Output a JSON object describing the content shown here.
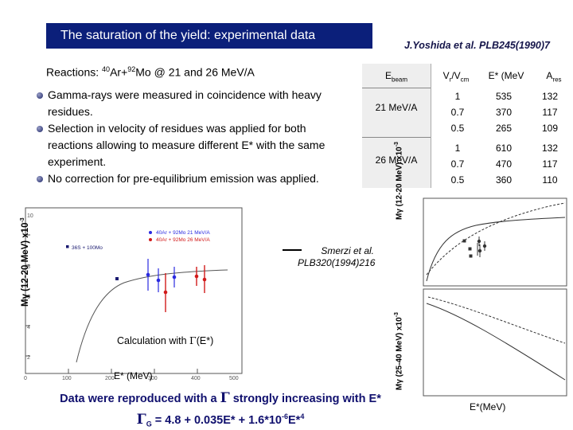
{
  "slide": {
    "title": "The saturation of the yield: experimental data",
    "reference": "J.Yoshida et al. PLB245(1990)7",
    "reactions": {
      "prefix": "Reactions: ",
      "ar_mass": "40",
      "ar": "Ar+",
      "mo_mass": "92",
      "mo": "Mo @ 21 and 26 MeV/A"
    },
    "bullets": [
      "Gamma-rays were measured in coincidence with heavy residues.",
      "Selection in velocity of residues was applied for both reactions allowing to measure different E* with the same experiment.",
      "No correction for pre-equilibrium emission was applied."
    ],
    "table": {
      "headers": {
        "ebeam": "E",
        "ebeam_sub": "beam",
        "vr": "V",
        "vr_sub": "r",
        "vr_mid": "/V",
        "vr_sub2": "cm",
        "estar": "E* (MeV",
        "ares": "A",
        "ares_sub": "res"
      },
      "rows": [
        {
          "beam": "21 MeV/A",
          "vr": [
            "1",
            "0.7",
            "0.5"
          ],
          "estar": [
            "535",
            "370",
            "265"
          ],
          "ares": [
            "132",
            "117",
            "109"
          ]
        },
        {
          "beam": "26 MeV/A",
          "vr": [
            "1",
            "0.7",
            "0.5"
          ],
          "estar": [
            "610",
            "470",
            "360"
          ],
          "ares": [
            "132",
            "117",
            "110"
          ]
        }
      ]
    },
    "left_plot": {
      "ylabel": "Mγ (12-20 MeV) x10",
      "ylabel_exp": "-3",
      "xlabel": "E* (MeV)",
      "legend": [
        "40Ar + 92Mo 21 MeV/A",
        "40Ar + 92Mo 26 MeV/A",
        "36S + 100Mo"
      ],
      "calc_prefix": "Calculation with ",
      "calc_gamma": "Γ",
      "calc_suffix": "(E*)",
      "smerzi_line1": "Smerzi et al.",
      "smerzi_line2": "PLB320(1994)216",
      "yticks": [
        "10",
        "8",
        "6",
        "4",
        "2"
      ],
      "xticks": [
        "0",
        "100",
        "200",
        "300",
        "400",
        "500"
      ]
    },
    "right_plot": {
      "ylabel_top": "Mγ (12-20 MeV) x10",
      "ylabel_top_exp": "-3",
      "ylabel_bottom": "Mγ (25-40 MeV) x10",
      "ylabel_bottom_exp": "-3",
      "xlabel": "E*(MeV)"
    },
    "conclusion": {
      "line1_a": "Data were reproduced with a ",
      "gamma": "Γ",
      "line1_b": " strongly increasing with E*",
      "gamma_g": "Γ",
      "g_sub": "G",
      "formula": " = 4.8 + 0.035E* + 1.6*10",
      "formula_exp": "-6",
      "formula_end": "E*",
      "formula_exp2": "4"
    },
    "colors": {
      "title_bg": "#0b1f7a",
      "conclusion": "#10106e",
      "ar21": "#2a2ae0",
      "ar26": "#d11a1a",
      "s36": "#1a1a70"
    }
  }
}
